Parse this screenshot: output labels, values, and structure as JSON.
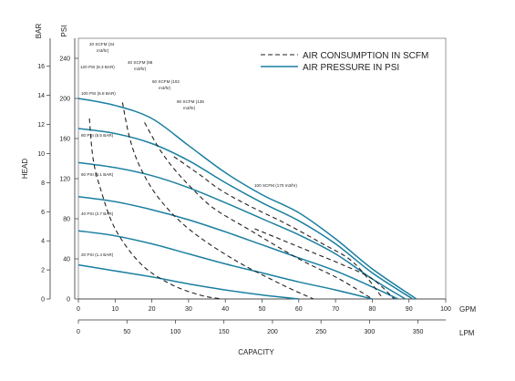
{
  "chart_data": {
    "type": "line",
    "xlabel": "CAPACITY",
    "ylabel": "HEAD",
    "x_unit": "GPM",
    "x2_unit": "LPM",
    "y_unit_left": "BAR",
    "y_unit_right": "PSI",
    "xlim": [
      0,
      100
    ],
    "ylim_psi": [
      0,
      260
    ],
    "x_ticks": [
      0,
      10,
      20,
      30,
      40,
      50,
      60,
      70,
      80,
      90,
      100
    ],
    "x2_ticks": [
      0,
      50,
      100,
      150,
      200,
      250,
      300,
      350
    ],
    "y_psi_ticks": [
      0,
      40,
      80,
      120,
      160,
      200,
      240
    ],
    "y_bar_ticks": [
      0,
      2,
      4,
      6,
      8,
      10,
      12,
      14,
      16
    ],
    "colors": {
      "pressure": "#1a7fa0",
      "consumption": "#222222"
    },
    "legend": [
      {
        "label": "AIR CONSUMPTION IN SCFM",
        "style": "dashed"
      },
      {
        "label": "AIR PRESSURE IN PSI",
        "style": "solid"
      }
    ],
    "series": [
      {
        "name": "20 PSI (1.4 BAR)",
        "style": "solid",
        "x": [
          0,
          10,
          20,
          30,
          40,
          50,
          60
        ],
        "y": [
          34,
          28,
          22,
          15,
          9,
          4,
          0
        ]
      },
      {
        "name": "40 PSI (2.7 BAR)",
        "style": "solid",
        "x": [
          0,
          10,
          20,
          30,
          40,
          50,
          60,
          70,
          80
        ],
        "y": [
          68,
          63,
          55,
          45,
          35,
          26,
          17,
          9,
          0
        ]
      },
      {
        "name": "60 PSI (4.1 BAR)",
        "style": "solid",
        "x": [
          0,
          10,
          20,
          30,
          40,
          50,
          60,
          70,
          80,
          87
        ],
        "y": [
          102,
          97,
          89,
          79,
          67,
          54,
          41,
          28,
          12,
          0
        ]
      },
      {
        "name": "80 PSI (5.5 BAR)",
        "style": "solid",
        "x": [
          0,
          10,
          20,
          30,
          40,
          50,
          60,
          70,
          80,
          89
        ],
        "y": [
          136,
          131,
          123,
          111,
          96,
          80,
          64,
          45,
          20,
          0
        ]
      },
      {
        "name": "100 PSI (6.8 BAR)",
        "style": "solid",
        "x": [
          0,
          10,
          20,
          30,
          40,
          50,
          60,
          70,
          80,
          91
        ],
        "y": [
          170,
          165,
          155,
          138,
          116,
          96,
          78,
          55,
          26,
          0
        ]
      },
      {
        "name": "120 PSI (8.3 BAR)",
        "style": "solid",
        "x": [
          0,
          10,
          20,
          30,
          40,
          50,
          60,
          70,
          80,
          92
        ],
        "y": [
          200,
          193,
          180,
          153,
          126,
          104,
          86,
          60,
          30,
          0
        ]
      },
      {
        "name": "20 SCFM (34 m3/hr)",
        "style": "dashed",
        "x": [
          3,
          4,
          6,
          10,
          17,
          25,
          33,
          39
        ],
        "y": [
          180,
          140,
          110,
          70,
          35,
          15,
          4,
          0
        ]
      },
      {
        "name": "40 SCFM (68 m3/hr)",
        "style": "dashed",
        "x": [
          12,
          14,
          17,
          22,
          30,
          42,
          55,
          64
        ],
        "y": [
          196,
          160,
          130,
          100,
          70,
          40,
          15,
          0
        ]
      },
      {
        "name": "60 SCFM (102 m3/hr)",
        "style": "dashed",
        "x": [
          18,
          22,
          26,
          31,
          37,
          47,
          60,
          71,
          80
        ],
        "y": [
          176,
          150,
          130,
          110,
          90,
          68,
          40,
          20,
          0
        ]
      },
      {
        "name": "80 SCFM (136 m3/hr)",
        "style": "dashed",
        "x": [
          26,
          33,
          39,
          47,
          56,
          66,
          75,
          83
        ],
        "y": [
          142,
          124,
          108,
          92,
          76,
          56,
          36,
          0
        ]
      },
      {
        "name": "100 SCFM (170 m3/hr)",
        "style": "dashed",
        "x": [
          48,
          56,
          64,
          72,
          80,
          86
        ],
        "y": [
          70,
          58,
          46,
          34,
          20,
          0
        ]
      }
    ],
    "labels": [
      {
        "text": "20 PSI (1.4 BAR)"
      },
      {
        "text": "40 PSI (2.7 BAR)"
      },
      {
        "text": "60 PSI (4.1 BAR)"
      },
      {
        "text": "80 PSI (5.5 BAR)"
      },
      {
        "text": "100 PSI (6.8 BAR)"
      },
      {
        "text": "120 PSI (8.3 BAR)"
      },
      {
        "text": "20 SCFM (34",
        "text2": "m3/hr)"
      },
      {
        "text": "40 SCFM (68",
        "text2": "m3/hr)"
      },
      {
        "text": "60 SCFM (102",
        "text2": "m3/hr)"
      },
      {
        "text": "80 SCFM (136",
        "text2": "m3/hr)"
      },
      {
        "text": "100 SCFM (170 m3/hr)"
      }
    ]
  }
}
